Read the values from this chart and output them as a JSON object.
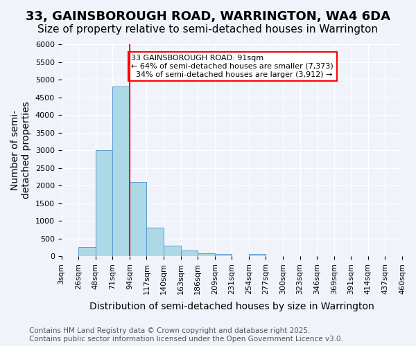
{
  "title": "33, GAINSBOROUGH ROAD, WARRINGTON, WA4 6DA",
  "subtitle": "Size of property relative to semi-detached houses in Warrington",
  "xlabel": "Distribution of semi-detached houses by size in Warrington",
  "ylabel": "Number of semi-\ndetached properties",
  "footnote": "Contains HM Land Registry data © Crown copyright and database right 2025.\nContains public sector information licensed under the Open Government Licence v3.0.",
  "bins": [
    3,
    26,
    48,
    71,
    94,
    117,
    140,
    163,
    186,
    209,
    231,
    254,
    277,
    300,
    323,
    346,
    369,
    391,
    414,
    437,
    460
  ],
  "bin_labels": [
    "3sqm",
    "26sqm",
    "48sqm",
    "71sqm",
    "94sqm",
    "117sqm",
    "140sqm",
    "163sqm",
    "186sqm",
    "209sqm",
    "231sqm",
    "254sqm",
    "277sqm",
    "300sqm",
    "323sqm",
    "346sqm",
    "369sqm",
    "391sqm",
    "414sqm",
    "437sqm",
    "460sqm"
  ],
  "values": [
    0,
    250,
    3000,
    4800,
    2100,
    800,
    300,
    150,
    70,
    50,
    0,
    50,
    0,
    0,
    0,
    0,
    0,
    0,
    0,
    0
  ],
  "bar_color": "#add8e6",
  "bar_edge_color": "#5b9bd5",
  "property_size": 91,
  "property_line_x": 94,
  "property_label": "33 GAINSBOROUGH ROAD: 91sqm",
  "pct_smaller": 64,
  "pct_smaller_count": 7373,
  "pct_larger": 34,
  "pct_larger_count": 3912,
  "annotation_box_color": "#ff0000",
  "ylim": [
    0,
    6000
  ],
  "yticks": [
    0,
    500,
    1000,
    1500,
    2000,
    2500,
    3000,
    3500,
    4000,
    4500,
    5000,
    5500,
    6000
  ],
  "background_color": "#f0f4fa",
  "grid_color": "#ffffff",
  "title_fontsize": 13,
  "subtitle_fontsize": 11,
  "axis_label_fontsize": 10,
  "tick_fontsize": 8,
  "footnote_fontsize": 7.5
}
